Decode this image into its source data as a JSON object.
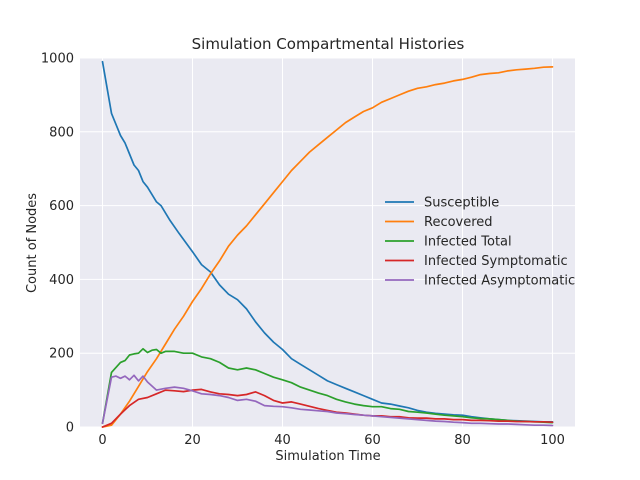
{
  "chart_data": {
    "type": "line",
    "title": "Simulation Compartmental Histories",
    "xlabel": "Simulation Time",
    "ylabel": "Count of Nodes",
    "xlim": [
      -5,
      105
    ],
    "ylim": [
      0,
      1000
    ],
    "xticks": [
      0,
      20,
      40,
      60,
      80,
      100
    ],
    "yticks": [
      0,
      200,
      400,
      600,
      800,
      1000
    ],
    "grid": true,
    "legend_position": "center-right",
    "style": {
      "background": "#eaeaf2",
      "grid_color": "#ffffff"
    },
    "series": [
      {
        "name": "Susceptible",
        "color": "#1f77b4",
        "x": [
          0,
          2,
          4,
          5,
          7,
          8,
          9,
          10,
          12,
          13,
          15,
          17,
          20,
          22,
          24,
          26,
          28,
          30,
          32,
          34,
          36,
          38,
          40,
          42,
          44,
          46,
          48,
          50,
          52,
          54,
          56,
          58,
          60,
          62,
          64,
          66,
          68,
          70,
          72,
          74,
          76,
          78,
          80,
          82,
          84,
          86,
          88,
          90,
          92,
          94,
          96,
          98,
          100
        ],
        "y": [
          990,
          850,
          790,
          770,
          710,
          695,
          665,
          650,
          610,
          600,
          560,
          525,
          475,
          440,
          420,
          385,
          360,
          345,
          320,
          285,
          255,
          230,
          210,
          185,
          170,
          155,
          140,
          125,
          115,
          105,
          95,
          85,
          75,
          65,
          62,
          57,
          52,
          45,
          40,
          37,
          35,
          33,
          32,
          28,
          25,
          22,
          20,
          18,
          17,
          16,
          15,
          14,
          14
        ]
      },
      {
        "name": "Recovered",
        "color": "#ff7f0e",
        "x": [
          0,
          2,
          4,
          6,
          8,
          10,
          12,
          14,
          16,
          18,
          20,
          22,
          24,
          26,
          28,
          30,
          32,
          34,
          36,
          38,
          40,
          42,
          44,
          46,
          48,
          50,
          52,
          54,
          56,
          58,
          60,
          62,
          64,
          66,
          68,
          70,
          72,
          74,
          76,
          78,
          80,
          82,
          84,
          86,
          88,
          90,
          92,
          94,
          96,
          98,
          100
        ],
        "y": [
          0,
          5,
          35,
          70,
          110,
          150,
          185,
          225,
          265,
          300,
          340,
          375,
          415,
          450,
          490,
          520,
          545,
          575,
          605,
          635,
          665,
          695,
          720,
          745,
          765,
          785,
          805,
          825,
          840,
          855,
          865,
          880,
          890,
          900,
          910,
          918,
          922,
          928,
          932,
          938,
          942,
          948,
          955,
          958,
          960,
          965,
          968,
          970,
          972,
          975,
          976
        ]
      },
      {
        "name": "Infected Total",
        "color": "#2ca02c",
        "x": [
          0,
          2,
          4,
          5,
          6,
          7,
          8,
          9,
          10,
          11,
          12,
          13,
          14,
          16,
          18,
          20,
          22,
          24,
          26,
          28,
          30,
          32,
          34,
          36,
          38,
          40,
          42,
          44,
          46,
          48,
          50,
          52,
          54,
          56,
          58,
          60,
          62,
          64,
          66,
          68,
          70,
          72,
          74,
          76,
          78,
          80,
          82,
          84,
          86,
          88,
          90,
          92,
          94,
          96,
          98,
          100
        ],
        "y": [
          10,
          148,
          175,
          180,
          195,
          198,
          200,
          212,
          202,
          208,
          210,
          200,
          205,
          205,
          200,
          200,
          190,
          185,
          175,
          160,
          155,
          160,
          155,
          145,
          135,
          128,
          120,
          108,
          100,
          92,
          85,
          75,
          68,
          62,
          58,
          55,
          55,
          50,
          48,
          42,
          40,
          38,
          35,
          32,
          30,
          28,
          25,
          23,
          22,
          20,
          18,
          16,
          15,
          14,
          13,
          12
        ]
      },
      {
        "name": "Infected Symptomatic",
        "color": "#d62728",
        "x": [
          0,
          2,
          4,
          6,
          8,
          10,
          12,
          14,
          16,
          18,
          20,
          22,
          24,
          26,
          28,
          30,
          32,
          34,
          36,
          38,
          40,
          42,
          44,
          46,
          48,
          50,
          52,
          54,
          56,
          58,
          60,
          62,
          64,
          66,
          68,
          70,
          72,
          74,
          76,
          78,
          80,
          82,
          84,
          86,
          88,
          90,
          92,
          94,
          96,
          98,
          100
        ],
        "y": [
          0,
          10,
          35,
          58,
          75,
          80,
          90,
          100,
          98,
          96,
          100,
          102,
          95,
          90,
          88,
          85,
          88,
          95,
          85,
          72,
          65,
          68,
          62,
          56,
          50,
          45,
          40,
          38,
          35,
          32,
          30,
          30,
          28,
          28,
          25,
          24,
          24,
          22,
          22,
          20,
          20,
          18,
          18,
          17,
          16,
          16,
          15,
          15,
          14,
          14,
          13
        ]
      },
      {
        "name": "Infected Asymptomatic",
        "color": "#9467bd",
        "x": [
          0,
          2,
          3,
          4,
          5,
          6,
          7,
          8,
          9,
          10,
          12,
          14,
          16,
          18,
          20,
          22,
          24,
          26,
          28,
          30,
          32,
          34,
          36,
          38,
          40,
          42,
          44,
          46,
          48,
          50,
          52,
          54,
          56,
          58,
          60,
          62,
          64,
          66,
          68,
          70,
          72,
          74,
          76,
          78,
          80,
          82,
          84,
          86,
          88,
          90,
          92,
          94,
          96,
          98,
          100
        ],
        "y": [
          10,
          135,
          138,
          132,
          138,
          128,
          140,
          125,
          138,
          122,
          100,
          105,
          108,
          105,
          98,
          90,
          88,
          85,
          80,
          72,
          75,
          70,
          58,
          56,
          55,
          52,
          48,
          46,
          44,
          42,
          38,
          36,
          34,
          32,
          30,
          28,
          26,
          24,
          22,
          20,
          18,
          16,
          15,
          13,
          12,
          10,
          10,
          9,
          8,
          8,
          7,
          6,
          5,
          5,
          4
        ]
      }
    ]
  }
}
